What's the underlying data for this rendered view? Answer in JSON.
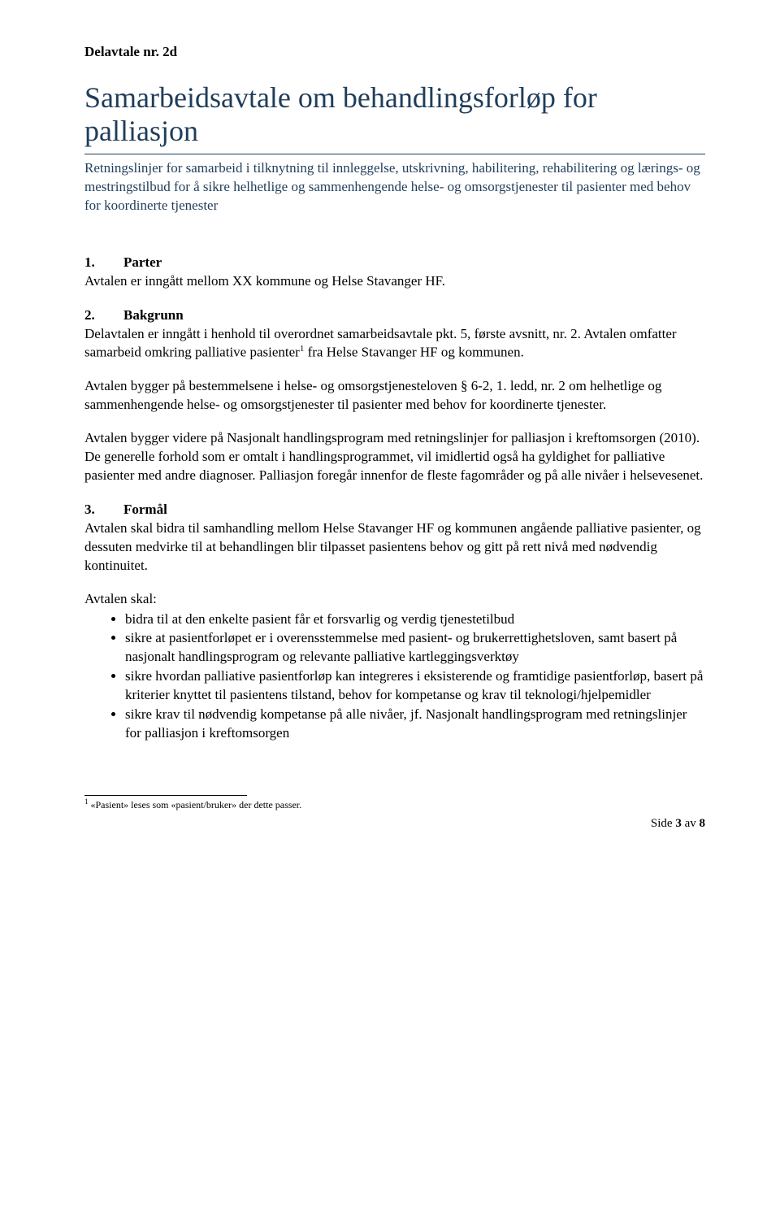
{
  "colors": {
    "heading": "#1f3d5a",
    "body": "#000000",
    "background": "#ffffff",
    "rule": "#1f3d5a"
  },
  "typography": {
    "title_fontsize": 36,
    "subtitle_fontsize": 17,
    "body_fontsize": 17,
    "footnote_fontsize": 12,
    "font_family": "Times New Roman"
  },
  "doc_label": "Delavtale nr. 2d",
  "title": "Samarbeidsavtale om behandlingsforløp for palliasjon",
  "subtitle": "Retningslinjer for samarbeid i tilknytning til innleggelse, utskrivning, habilitering, rehabilitering og lærings- og mestringstilbud for å sikre helhetlige og sammenhengende helse- og omsorgstjenester til pasienter med behov for koordinerte tjenester",
  "sections": {
    "s1": {
      "num": "1.",
      "heading": "Parter",
      "p1": "Avtalen er inngått mellom XX kommune og Helse Stavanger HF."
    },
    "s2": {
      "num": "2.",
      "heading": "Bakgrunn",
      "p1_a": "Delavtalen er inngått i henhold til overordnet samarbeidsavtale pkt. 5, første avsnitt, nr. 2. Avtalen omfatter samarbeid omkring palliative pasienter",
      "p1_sup": "1",
      "p1_b": " fra Helse Stavanger HF og kommunen.",
      "p2": "Avtalen bygger på bestemmelsene i helse- og omsorgstjenesteloven § 6-2, 1. ledd, nr. 2 om helhetlige og sammenhengende helse- og omsorgstjenester til pasienter med behov for koordinerte tjenester.",
      "p3": "Avtalen bygger videre på Nasjonalt handlingsprogram med retningslinjer for palliasjon i kreftomsorgen (2010). De generelle forhold som er omtalt i handlingsprogrammet, vil imidlertid også ha gyldighet for palliative pasienter med andre diagnoser. Palliasjon foregår innenfor de fleste fagområder og på alle nivåer i helsevesenet."
    },
    "s3": {
      "num": "3.",
      "heading": "Formål",
      "p1": "Avtalen skal bidra til samhandling mellom Helse Stavanger HF og kommunen angående palliative pasienter, og dessuten medvirke til at behandlingen blir tilpasset pasientens behov og gitt på rett nivå med nødvendig kontinuitet.",
      "list_label": "Avtalen skal:",
      "bullets": [
        "bidra til at den enkelte pasient får et forsvarlig og verdig tjenestetilbud",
        "sikre at pasientforløpet er i overensstemmelse med pasient- og brukerrettighetsloven, samt basert på nasjonalt handlingsprogram og relevante palliative kartleggingsverktøy",
        "sikre hvordan palliative pasientforløp kan integreres i eksisterende og framtidige pasientforløp, basert på kriterier knyttet til pasientens tilstand, behov for kompetanse og krav til teknologi/hjelpemidler",
        "sikre krav til nødvendig kompetanse på alle nivåer, jf. Nasjonalt handlingsprogram med retningslinjer for palliasjon i kreftomsorgen"
      ]
    }
  },
  "footnote": {
    "marker": "1",
    "text": " «Pasient» leses som «pasient/bruker» der dette passer."
  },
  "footer": {
    "page_label": "Side ",
    "page_num": "3",
    "page_sep": " av ",
    "page_total": "8"
  }
}
